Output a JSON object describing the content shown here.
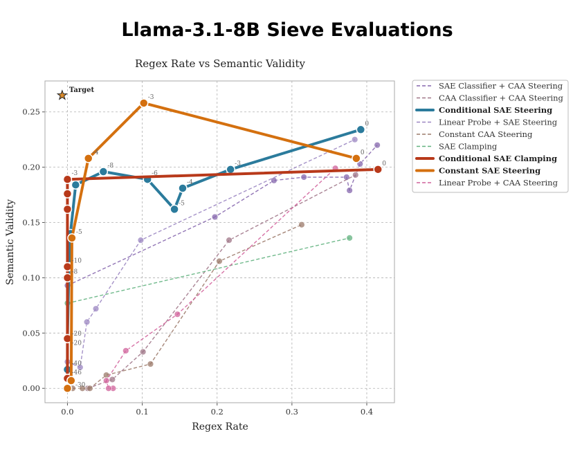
{
  "title": "Llama-3.1-8B Sieve Evaluations",
  "chart_data": {
    "type": "line",
    "title": "Regex Rate vs Semantic Validity",
    "xlabel": "Regex Rate",
    "ylabel": "Semantic Validity",
    "xlim": [
      -0.03,
      0.437
    ],
    "ylim": [
      -0.013,
      0.278
    ],
    "xticks": [
      0.0,
      0.1,
      0.2,
      0.3,
      0.4
    ],
    "xtick_labels": [
      "0.0",
      "0.1",
      "0.2",
      "0.3",
      "0.4"
    ],
    "yticks": [
      0.0,
      0.05,
      0.1,
      0.15,
      0.2,
      0.25
    ],
    "ytick_labels": [
      "0.00",
      "0.05",
      "0.10",
      "0.15",
      "0.20",
      "0.25"
    ],
    "grid": true,
    "legend_placement": "outside-right-top",
    "target": {
      "label": "Target",
      "x": -0.007,
      "y": 0.265,
      "color": "#d98a2b"
    },
    "series": [
      {
        "name": "SAE Classifier + CAA Steering",
        "color": "#8566ad",
        "style": "dashed",
        "bold": false,
        "x": [
          0.0,
          0.197,
          0.276,
          0.316,
          0.373,
          0.377,
          0.391,
          0.414
        ],
        "y": [
          0.093,
          0.155,
          0.188,
          0.191,
          0.191,
          0.179,
          0.203,
          0.22
        ],
        "labels": []
      },
      {
        "name": "CAA Classifier + CAA Steering",
        "color": "#a07688",
        "style": "dashed",
        "bold": false,
        "x": [
          0.027,
          0.06,
          0.101,
          0.216,
          0.385
        ],
        "y": [
          0.0,
          0.008,
          0.033,
          0.134,
          0.193
        ],
        "labels": []
      },
      {
        "name": "Conditional SAE Steering",
        "color": "#2b7b9c",
        "style": "solid",
        "bold": true,
        "x": [
          0.0,
          0.0,
          0.002,
          0.004,
          0.011,
          0.048,
          0.107,
          0.143,
          0.154,
          0.218,
          0.392
        ],
        "y": [
          0.017,
          0.044,
          0.11,
          0.14,
          0.184,
          0.196,
          0.189,
          0.162,
          0.181,
          0.198,
          0.234
        ],
        "labels": [
          "-40",
          "-20",
          "",
          "",
          "",
          "-8",
          "-6",
          "-5",
          "-4",
          "-3",
          "0"
        ]
      },
      {
        "name": "Linear Probe + SAE Steering",
        "color": "#9b86c2",
        "style": "dashed",
        "bold": false,
        "x": [
          0.0,
          0.017,
          0.026,
          0.038,
          0.098,
          0.384
        ],
        "y": [
          0.024,
          0.019,
          0.06,
          0.072,
          0.134,
          0.225
        ],
        "labels": []
      },
      {
        "name": "Constant CAA Steering",
        "color": "#9c7a6a",
        "style": "dashed",
        "bold": false,
        "x": [
          0.007,
          0.02,
          0.03,
          0.052,
          0.111,
          0.203,
          0.313
        ],
        "y": [
          0.0,
          0.0,
          0.0,
          0.012,
          0.022,
          0.115,
          0.148
        ],
        "labels": []
      },
      {
        "name": "SAE Clamping",
        "color": "#62b27f",
        "style": "dashed",
        "bold": false,
        "x": [
          0.0,
          0.377
        ],
        "y": [
          0.077,
          0.136
        ],
        "labels": []
      },
      {
        "name": "Conditional SAE Clamping",
        "color": "#b8391a",
        "style": "solid",
        "bold": true,
        "x": [
          0.0,
          0.0,
          0.0,
          0.0,
          0.0,
          0.0,
          0.0,
          0.415
        ],
        "y": [
          0.009,
          0.045,
          0.1,
          0.11,
          0.162,
          0.176,
          0.189,
          0.198
        ],
        "labels": [
          "-46",
          "-20",
          "-8",
          "-10",
          "",
          "",
          "-3",
          "0"
        ]
      },
      {
        "name": "Constant SAE Steering",
        "color": "#d4700f",
        "style": "solid",
        "bold": true,
        "x": [
          0.0,
          0.005,
          0.006,
          0.028,
          0.102,
          0.386
        ],
        "y": [
          0.0,
          0.007,
          0.136,
          0.208,
          0.258,
          0.208
        ],
        "labels": [
          "",
          "-30",
          "-5",
          "-4",
          "-3",
          "0"
        ]
      },
      {
        "name": "Linear Probe + CAA Steering",
        "color": "#d1629b",
        "style": "dashed",
        "bold": false,
        "x": [
          0.061,
          0.055,
          0.052,
          0.078,
          0.147,
          0.358
        ],
        "y": [
          0.0,
          0.0,
          0.007,
          0.034,
          0.067,
          0.199
        ],
        "labels": []
      }
    ]
  }
}
